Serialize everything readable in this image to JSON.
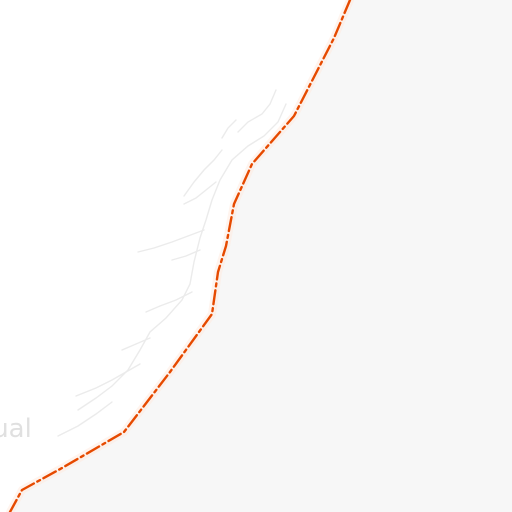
{
  "map": {
    "place_label": "tual",
    "colors": {
      "land_left": "#ffffff",
      "land_right": "#f7f7f7",
      "river": "#ededed",
      "border": "#e64a00",
      "border_halo": "#ffe7d9",
      "label": "#e0e0e0"
    },
    "features": {
      "border_style": "dash-dot",
      "border_name": "",
      "river_name": ""
    }
  }
}
